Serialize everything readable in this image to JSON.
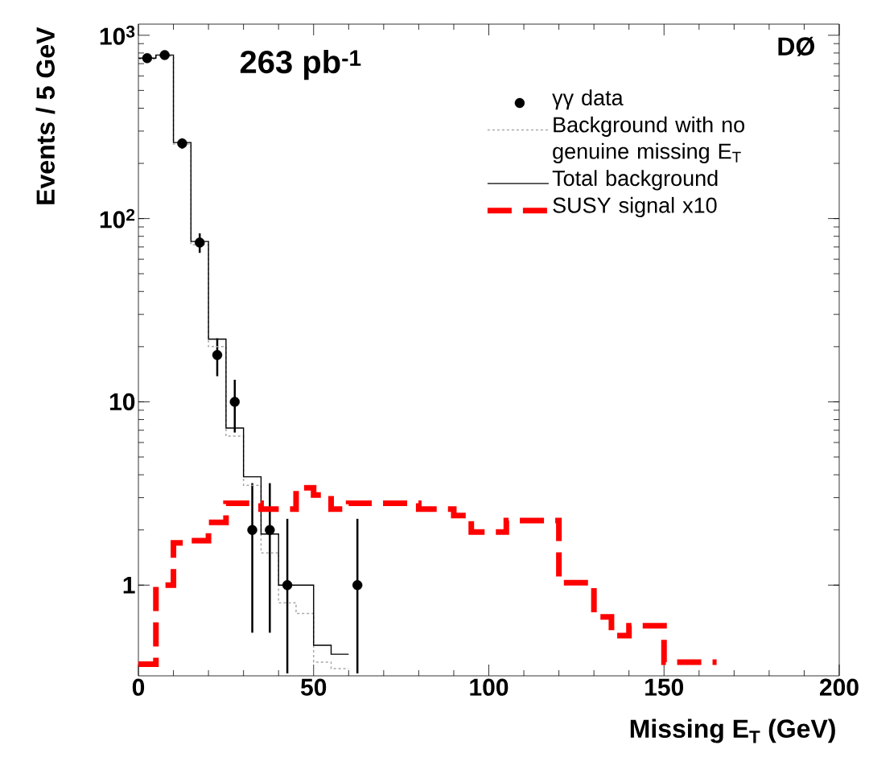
{
  "chart_data": {
    "type": "histogram",
    "xlabel": "Missing E$_{T}$  (GeV)",
    "ylabel": "Events / 5 GeV",
    "xlim": [
      0,
      200
    ],
    "ylim": [
      0.32,
      1150
    ],
    "log": "y",
    "xticks": [
      0,
      50,
      100,
      150,
      200
    ],
    "yticks": [
      1,
      10,
      {
        "value": 100,
        "label": "10$^{2}$"
      },
      {
        "value": 1000,
        "label": "10$^{3}$"
      }
    ],
    "legend": "top right",
    "annotations": [
      "263 pb$^{-1}$",
      "DØ"
    ],
    "series": [
      {
        "name": "γγ data",
        "type": "scatter",
        "color": "#000000",
        "marker": "circle",
        "x": [
          2.5,
          7.5,
          12.5,
          17.5,
          22.5,
          27.5,
          32.5,
          37.5,
          42.5,
          62.5
        ],
        "values": [
          750,
          780,
          257,
          74,
          18,
          10,
          2,
          2,
          1,
          1
        ],
        "errors": [
          27,
          28,
          16,
          9,
          4.2,
          3.2,
          [
            0.55,
            3.6
          ],
          [
            0.55,
            3.6
          ],
          [
            0.33,
            2.3
          ],
          [
            0.33,
            2.3
          ]
        ]
      },
      {
        "name": "Background with no genuine missing E$_{T}$",
        "type": "histogram",
        "color": "#a8a8a8",
        "line_style": "dotted",
        "bins": [
          0,
          5,
          10,
          15,
          20,
          25,
          30,
          35,
          40,
          45,
          50,
          55,
          60
        ],
        "values": [
          740,
          770,
          255,
          72,
          20,
          6.5,
          3.5,
          1.5,
          0.8,
          0.7,
          0.38,
          0.35
        ]
      },
      {
        "name": "Total background",
        "type": "histogram",
        "color": "#000000",
        "line_style": "solid",
        "bins": [
          0,
          5,
          10,
          15,
          20,
          25,
          30,
          35,
          40,
          45,
          50,
          55,
          60
        ],
        "values": [
          750,
          780,
          260,
          75,
          22,
          7.2,
          3.9,
          1.9,
          1.0,
          1.0,
          0.47,
          0.42
        ]
      },
      {
        "name": "SUSY signal x10",
        "type": "histogram",
        "color": "#ff0000",
        "line_style": "dashed",
        "bins": [
          0,
          5,
          10,
          15,
          20,
          25,
          30,
          35,
          40,
          45,
          50,
          55,
          60,
          65,
          70,
          75,
          80,
          85,
          90,
          95,
          100,
          105,
          110,
          115,
          120,
          125,
          130,
          135,
          140,
          145,
          150,
          155,
          160,
          165
        ],
        "values": [
          0.37,
          1.0,
          1.7,
          1.75,
          2.2,
          2.8,
          2.8,
          2.6,
          2.6,
          3.4,
          3.1,
          2.6,
          2.8,
          2.8,
          2.8,
          2.8,
          2.6,
          2.6,
          2.4,
          1.95,
          1.95,
          2.25,
          2.25,
          2.25,
          1.03,
          1.03,
          0.67,
          0.53,
          0.6,
          0.6,
          0.38,
          0.38,
          0.38
        ]
      }
    ]
  }
}
